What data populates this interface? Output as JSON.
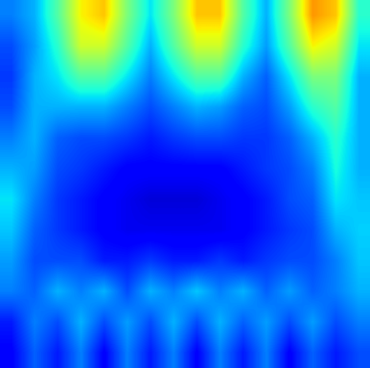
{
  "chart_data": {
    "type": "heatmap",
    "tick_labels": false,
    "grid": false,
    "clim": [
      0,
      1
    ],
    "cells": [
      [
        0.25,
        0.3,
        0.45,
        0.65,
        0.7,
        0.5,
        0.35,
        0.5,
        0.7,
        0.7,
        0.45,
        0.3,
        0.5,
        0.75,
        0.7,
        0.4
      ],
      [
        0.2,
        0.28,
        0.4,
        0.6,
        0.6,
        0.45,
        0.3,
        0.45,
        0.6,
        0.6,
        0.4,
        0.28,
        0.45,
        0.65,
        0.6,
        0.35
      ],
      [
        0.18,
        0.3,
        0.35,
        0.45,
        0.45,
        0.35,
        0.25,
        0.35,
        0.45,
        0.45,
        0.3,
        0.22,
        0.35,
        0.5,
        0.5,
        0.3
      ],
      [
        0.2,
        0.3,
        0.3,
        0.3,
        0.3,
        0.25,
        0.2,
        0.25,
        0.3,
        0.28,
        0.22,
        0.2,
        0.28,
        0.4,
        0.45,
        0.3
      ],
      [
        0.25,
        0.3,
        0.22,
        0.2,
        0.2,
        0.18,
        0.15,
        0.18,
        0.2,
        0.2,
        0.18,
        0.18,
        0.22,
        0.3,
        0.4,
        0.3
      ],
      [
        0.3,
        0.28,
        0.2,
        0.18,
        0.15,
        0.12,
        0.12,
        0.12,
        0.12,
        0.12,
        0.15,
        0.18,
        0.2,
        0.25,
        0.38,
        0.3
      ],
      [
        0.35,
        0.25,
        0.18,
        0.15,
        0.12,
        0.1,
        0.08,
        0.08,
        0.08,
        0.1,
        0.12,
        0.15,
        0.2,
        0.22,
        0.35,
        0.32
      ],
      [
        0.32,
        0.22,
        0.18,
        0.15,
        0.12,
        0.1,
        0.1,
        0.1,
        0.1,
        0.1,
        0.12,
        0.15,
        0.18,
        0.2,
        0.3,
        0.33
      ],
      [
        0.28,
        0.2,
        0.2,
        0.2,
        0.15,
        0.15,
        0.18,
        0.15,
        0.15,
        0.18,
        0.15,
        0.18,
        0.2,
        0.2,
        0.25,
        0.32
      ],
      [
        0.25,
        0.22,
        0.3,
        0.25,
        0.3,
        0.2,
        0.3,
        0.25,
        0.32,
        0.25,
        0.3,
        0.22,
        0.28,
        0.22,
        0.25,
        0.3
      ],
      [
        0.15,
        0.25,
        0.2,
        0.3,
        0.2,
        0.28,
        0.2,
        0.3,
        0.2,
        0.3,
        0.22,
        0.28,
        0.2,
        0.28,
        0.2,
        0.25
      ],
      [
        0.12,
        0.22,
        0.15,
        0.25,
        0.12,
        0.25,
        0.15,
        0.25,
        0.12,
        0.25,
        0.15,
        0.25,
        0.12,
        0.22,
        0.15,
        0.2
      ]
    ]
  }
}
